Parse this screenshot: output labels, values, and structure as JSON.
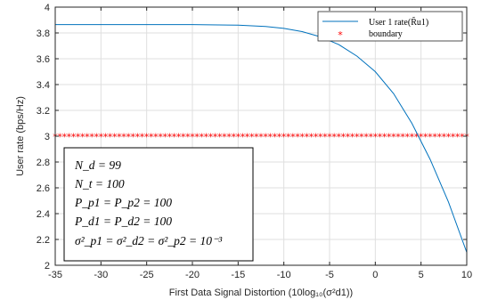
{
  "chart_data": {
    "type": "line",
    "xlabel": "First Data Signal Distortion (10log₁₀(σ²d1))",
    "ylabel": "User rate (bps/Hz)",
    "xlim": [
      -35,
      10
    ],
    "ylim": [
      2,
      4
    ],
    "xticks": [
      -35,
      -30,
      -25,
      -20,
      -15,
      -10,
      -5,
      0,
      5,
      10
    ],
    "yticks": [
      2,
      2.2,
      2.4,
      2.6,
      2.8,
      3,
      3.2,
      3.4,
      3.6,
      3.8,
      4
    ],
    "xtick_labels": [
      "-35",
      "-30",
      "-25",
      "-20",
      "-15",
      "-10",
      "-5",
      "0",
      "5",
      "10"
    ],
    "ytick_labels": [
      "2",
      "2.2",
      "2.4",
      "2.6",
      "2.8",
      "3",
      "3.2",
      "3.4",
      "3.6",
      "3.8",
      "4"
    ],
    "grid": true,
    "legend_position": "top-right",
    "series": [
      {
        "name": "User 1 rate(R̃u1)",
        "style": "line",
        "color": "#0072BD",
        "x": [
          -35,
          -30,
          -25,
          -20,
          -15,
          -12,
          -10,
          -8,
          -6,
          -4,
          -2,
          0,
          2,
          4,
          6,
          8,
          10
        ],
        "y": [
          3.865,
          3.865,
          3.865,
          3.865,
          3.86,
          3.85,
          3.835,
          3.81,
          3.77,
          3.71,
          3.62,
          3.5,
          3.33,
          3.1,
          2.82,
          2.49,
          2.1
        ]
      },
      {
        "name": "boundary",
        "style": "marker",
        "marker": "*",
        "color": "#FF0000",
        "x_start": -35,
        "x_end": 10,
        "x_step": 0.5,
        "y": 3
      }
    ],
    "annotations": [
      "N_d = 99",
      "N_t = 100",
      "P_p1 = P_p2 = 100",
      "P_d1 = P_d2 = 100",
      "σ²_p1 = σ²_d2 = σ²_p2 = 10⁻³"
    ]
  }
}
